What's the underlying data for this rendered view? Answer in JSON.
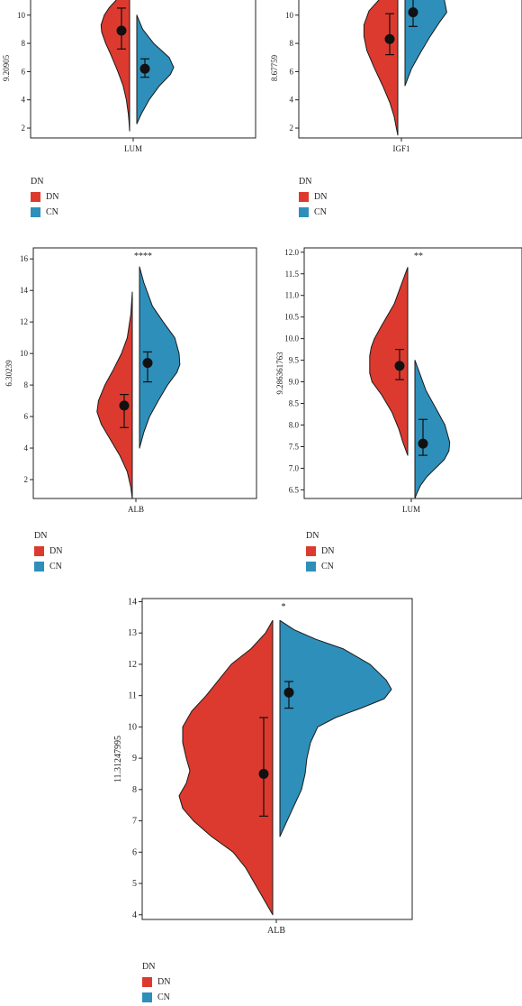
{
  "colors": {
    "DN": "#dd3a2f",
    "CN": "#2e8fba"
  },
  "chart_data": [
    {
      "type": "violin",
      "xlabel": "LUM",
      "ylabel": "9.20905",
      "yticks": [
        2,
        4,
        6,
        8,
        10
      ],
      "ylim": [
        1.3,
        11.2
      ],
      "significance": "",
      "legend": {
        "title": "DN",
        "entries": [
          "DN",
          "CN"
        ]
      },
      "series": [
        {
          "name": "DN",
          "side": "left",
          "mean": 8.9,
          "err_low": 7.6,
          "err_high": 10.5,
          "density": [
            [
              12,
              0
            ],
            [
              11.2,
              36
            ],
            [
              10.5,
              64
            ],
            [
              10,
              78
            ],
            [
              9.3,
              88
            ],
            [
              8.8,
              86
            ],
            [
              8,
              74
            ],
            [
              7.2,
              58
            ],
            [
              6,
              36
            ],
            [
              5,
              20
            ],
            [
              4,
              10
            ],
            [
              3,
              4
            ],
            [
              2.5,
              2
            ],
            [
              1.8,
              0
            ]
          ]
        },
        {
          "name": "CN",
          "side": "right",
          "mean": 6.2,
          "err_low": 5.6,
          "err_high": 6.9,
          "density": [
            [
              10,
              0
            ],
            [
              9,
              18
            ],
            [
              8,
              52
            ],
            [
              7,
              100
            ],
            [
              6.3,
              114
            ],
            [
              5.8,
              104
            ],
            [
              5,
              70
            ],
            [
              4,
              38
            ],
            [
              3,
              14
            ],
            [
              2.3,
              0
            ]
          ]
        }
      ]
    },
    {
      "type": "violin",
      "xlabel": "IGF1",
      "ylabel": "8.67759",
      "yticks": [
        2,
        4,
        6,
        8,
        10
      ],
      "ylim": [
        1.3,
        11.2
      ],
      "significance": "",
      "legend": {
        "title": "DN",
        "entries": [
          "DN",
          "CN"
        ]
      },
      "series": [
        {
          "name": "DN",
          "side": "left",
          "mean": 8.3,
          "err_low": 7.2,
          "err_high": 10.1,
          "density": [
            [
              12,
              0
            ],
            [
              11.2,
              48
            ],
            [
              10.3,
              80
            ],
            [
              9.3,
              94
            ],
            [
              8.5,
              94
            ],
            [
              7.5,
              86
            ],
            [
              6.3,
              66
            ],
            [
              5,
              42
            ],
            [
              3.8,
              22
            ],
            [
              2.8,
              10
            ],
            [
              2,
              4
            ],
            [
              1.5,
              0
            ]
          ]
        },
        {
          "name": "CN",
          "side": "right",
          "mean": 10.2,
          "err_low": 9.2,
          "err_high": 11.3,
          "density": [
            [
              12,
              104
            ],
            [
              11,
              110
            ],
            [
              10.2,
              116
            ],
            [
              9.5,
              96
            ],
            [
              8.5,
              70
            ],
            [
              7.3,
              42
            ],
            [
              6.2,
              18
            ],
            [
              5,
              0
            ]
          ]
        }
      ]
    },
    {
      "type": "violin",
      "xlabel": "ALB",
      "ylabel": "6.30239",
      "yticks": [
        2,
        4,
        6,
        8,
        10,
        12,
        14,
        16
      ],
      "ylim": [
        0.8,
        16.7
      ],
      "significance": "****",
      "legend": {
        "title": "DN",
        "entries": [
          "DN",
          "CN"
        ]
      },
      "series": [
        {
          "name": "DN",
          "side": "left",
          "mean": 6.7,
          "err_low": 5.3,
          "err_high": 7.4,
          "density": [
            [
              13.9,
              0
            ],
            [
              12.5,
              4
            ],
            [
              11,
              14
            ],
            [
              10,
              30
            ],
            [
              9,
              52
            ],
            [
              8,
              76
            ],
            [
              7,
              94
            ],
            [
              6.3,
              98
            ],
            [
              5.5,
              86
            ],
            [
              4.5,
              60
            ],
            [
              3.5,
              34
            ],
            [
              2.5,
              14
            ],
            [
              1.5,
              4
            ],
            [
              0.8,
              0
            ]
          ]
        },
        {
          "name": "CN",
          "side": "right",
          "mean": 9.4,
          "err_low": 8.2,
          "err_high": 10.1,
          "density": [
            [
              15.5,
              0
            ],
            [
              14.5,
              12
            ],
            [
              13,
              36
            ],
            [
              12,
              66
            ],
            [
              11,
              98
            ],
            [
              10,
              110
            ],
            [
              9.3,
              112
            ],
            [
              8.8,
              104
            ],
            [
              8,
              78
            ],
            [
              7,
              52
            ],
            [
              6,
              28
            ],
            [
              5,
              12
            ],
            [
              4,
              0
            ]
          ]
        }
      ]
    },
    {
      "type": "violin",
      "xlabel": "LUM",
      "ylabel": "9.286361763",
      "yticks": [
        6.5,
        7.0,
        7.5,
        8.0,
        8.5,
        9.0,
        9.5,
        10.0,
        10.5,
        11.0,
        11.5,
        12.0
      ],
      "ylim": [
        6.3,
        12.1
      ],
      "significance": "**",
      "legend": {
        "title": "DN",
        "entries": [
          "DN",
          "CN"
        ]
      },
      "series": [
        {
          "name": "DN",
          "side": "left",
          "mean": 9.37,
          "err_low": 9.05,
          "err_high": 9.75,
          "density": [
            [
              11.65,
              0
            ],
            [
              11.3,
              14
            ],
            [
              10.8,
              34
            ],
            [
              10.3,
              66
            ],
            [
              10.0,
              84
            ],
            [
              9.8,
              92
            ],
            [
              9.6,
              96
            ],
            [
              9.4,
              96
            ],
            [
              9.2,
              96
            ],
            [
              9.0,
              90
            ],
            [
              8.7,
              66
            ],
            [
              8.3,
              40
            ],
            [
              7.9,
              22
            ],
            [
              7.6,
              12
            ],
            [
              7.3,
              0
            ]
          ]
        },
        {
          "name": "CN",
          "side": "right",
          "mean": 7.57,
          "err_low": 7.3,
          "err_high": 8.13,
          "density": [
            [
              9.5,
              0
            ],
            [
              9.2,
              12
            ],
            [
              8.8,
              28
            ],
            [
              8.4,
              52
            ],
            [
              8.0,
              76
            ],
            [
              7.6,
              88
            ],
            [
              7.4,
              86
            ],
            [
              7.2,
              74
            ],
            [
              7.0,
              52
            ],
            [
              6.8,
              30
            ],
            [
              6.6,
              14
            ],
            [
              6.4,
              4
            ],
            [
              6.3,
              0
            ]
          ]
        }
      ]
    },
    {
      "type": "violin",
      "xlabel": "ALB",
      "ylabel": "11.31247995",
      "yticks": [
        4,
        5,
        6,
        7,
        8,
        9,
        10,
        11,
        12,
        13,
        14
      ],
      "ylim": [
        3.85,
        14.1
      ],
      "significance": "*",
      "legend": {
        "title": "DN",
        "entries": [
          "DN",
          "CN"
        ]
      },
      "series": [
        {
          "name": "DN",
          "side": "left",
          "mean": 8.5,
          "err_low": 7.15,
          "err_high": 10.3,
          "density": [
            [
              13.4,
              0
            ],
            [
              13,
              8
            ],
            [
              12.5,
              24
            ],
            [
              12,
              46
            ],
            [
              11.5,
              60
            ],
            [
              11,
              74
            ],
            [
              10.5,
              90
            ],
            [
              10,
              100
            ],
            [
              9.5,
              100
            ],
            [
              9,
              96
            ],
            [
              8.6,
              92
            ],
            [
              8.2,
              96
            ],
            [
              7.8,
              104
            ],
            [
              7.4,
              100
            ],
            [
              7,
              88
            ],
            [
              6.5,
              68
            ],
            [
              6,
              44
            ],
            [
              5.5,
              30
            ],
            [
              5,
              20
            ],
            [
              4.5,
              10
            ],
            [
              4,
              0
            ]
          ]
        },
        {
          "name": "CN",
          "side": "right",
          "mean": 11.1,
          "err_low": 10.6,
          "err_high": 11.45,
          "density": [
            [
              13.4,
              0
            ],
            [
              13.1,
              16
            ],
            [
              12.8,
              40
            ],
            [
              12.5,
              70
            ],
            [
              12,
              100
            ],
            [
              11.5,
              118
            ],
            [
              11.2,
              124
            ],
            [
              10.9,
              116
            ],
            [
              10.6,
              90
            ],
            [
              10.3,
              62
            ],
            [
              10,
              42
            ],
            [
              9.5,
              34
            ],
            [
              9,
              30
            ],
            [
              8.5,
              28
            ],
            [
              8,
              24
            ],
            [
              7.5,
              16
            ],
            [
              7,
              8
            ],
            [
              6.5,
              0
            ]
          ]
        }
      ]
    }
  ]
}
